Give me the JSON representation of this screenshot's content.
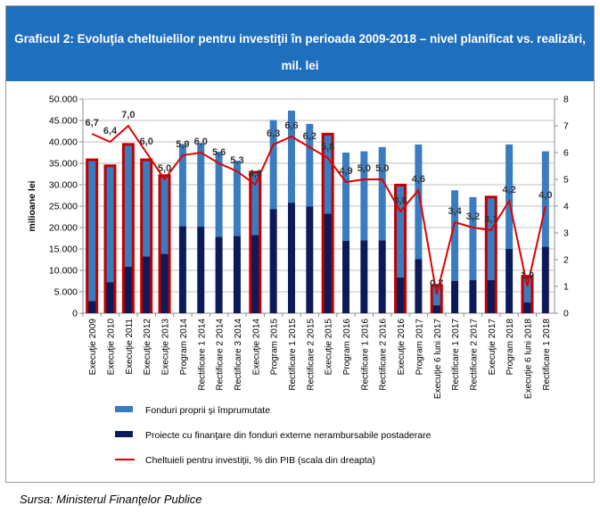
{
  "title_line1": "Graficul 2: Evoluţia cheltuielilor pentru investiţii în perioada 2009-2018 – nivel planificat vs. realizări,",
  "title_line2": "mil. lei",
  "source": "Sursa: Ministerul Finanţelor Publice",
  "colors": {
    "title_bg": "#1f6fbf",
    "own_funds": "#3a7cc0",
    "external": "#0c1a5a",
    "line": "#e00000",
    "highlight": "#c00000"
  },
  "chart_data": {
    "type": "bar",
    "ylabel": "milioane lei",
    "ylim": [
      0,
      50000
    ],
    "y2lim": [
      0,
      8
    ],
    "yticks": [
      "0",
      "5.000",
      "10.000",
      "15.000",
      "20.000",
      "25.000",
      "30.000",
      "35.000",
      "40.000",
      "45.000",
      "50.000"
    ],
    "y2ticks": [
      "0",
      "1",
      "2",
      "3",
      "4",
      "5",
      "6",
      "7",
      "8"
    ],
    "grid": true,
    "legend_position": "bottom",
    "categories": [
      "Execuţie 2009",
      "Execuţie 2010",
      "Execuţie 2011",
      "Execuţie 2012",
      "Execuţie 2013",
      "Program 2014",
      "Rectificare 1 2014",
      "Rectificare 2 2014",
      "Rectificare 3 2014",
      "Execuţie 2014",
      "Program 2015",
      "Rectificare 1 2015",
      "Rectificare 2 2015",
      "Execuţie 2015",
      "Program 2016",
      "Rectificare 1 2016",
      "Rectificare 2 2016",
      "Execuţie 2016",
      "Program 2017",
      "Execuţie 6 luni 2017",
      "Rectificare 1 2017",
      "Rectificare 2 2017",
      "Execuţie 2017",
      "Program 2018",
      "Execuţie 6 luni 2018",
      "Rectificare 1 2018"
    ],
    "highlighted": [
      true,
      true,
      true,
      true,
      true,
      false,
      false,
      false,
      false,
      true,
      false,
      false,
      false,
      true,
      false,
      false,
      false,
      true,
      false,
      true,
      false,
      false,
      true,
      false,
      true,
      false
    ],
    "series": [
      {
        "name": "Proiecte cu finanţare din fonduri externe nerambursabile postaderare",
        "role": "bar-bottom",
        "values": [
          2800,
          7200,
          10800,
          13200,
          13800,
          20300,
          20200,
          17800,
          18000,
          18200,
          24300,
          25800,
          24900,
          23200,
          16900,
          17000,
          17000,
          8300,
          12600,
          1800,
          7500,
          7700,
          7700,
          15000,
          2500,
          15500
        ]
      },
      {
        "name": "Fonduri proprii şi împrumutate",
        "role": "bar-top",
        "values": [
          32700,
          26900,
          28300,
          22300,
          18000,
          19200,
          19500,
          19900,
          17600,
          14400,
          20800,
          21500,
          19300,
          18300,
          20600,
          20800,
          21800,
          21300,
          26800,
          4400,
          21200,
          19400,
          19100,
          24400,
          5800,
          22300
        ]
      },
      {
        "name": "Cheltuieli pentru investiţii, % din PIB (scala din dreapta)",
        "role": "line-right",
        "values": [
          6.7,
          6.4,
          7.0,
          6.0,
          5.0,
          5.9,
          6.0,
          5.6,
          5.3,
          4.8,
          6.3,
          6.6,
          6.2,
          5.8,
          4.9,
          5.0,
          5.0,
          3.8,
          4.6,
          0.7,
          3.4,
          3.2,
          3.1,
          4.2,
          1.0,
          4.0
        ],
        "labels": [
          "6,7",
          "6,4",
          "7,0",
          "6,0",
          "5,0",
          "5,9",
          "6,0",
          "5,6",
          "5,3",
          "4,8",
          "6,3",
          "6,6",
          "6,2",
          "5,8",
          "4,9",
          "5,0",
          "5,0",
          "3,8",
          "4,6",
          "0,7",
          "3,4",
          "3,2",
          "3,1",
          "4,2",
          "1,0",
          "4,0"
        ]
      }
    ]
  }
}
